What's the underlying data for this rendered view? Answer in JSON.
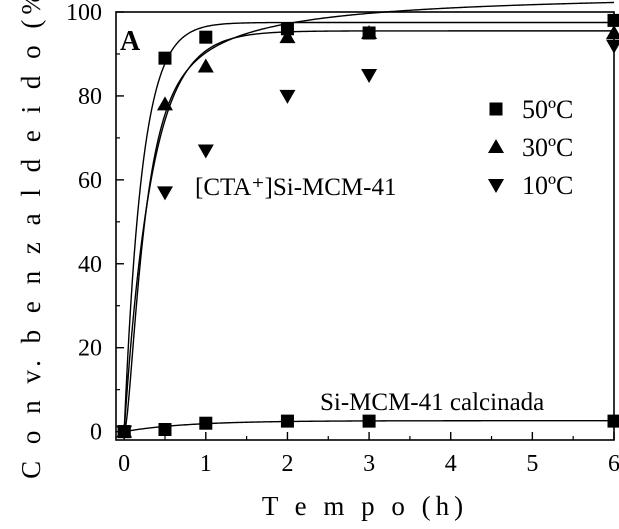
{
  "chart_data": {
    "type": "scatter",
    "panel_label": "A",
    "xlabel": "T e m p o  (h)",
    "ylabel": "C o n v.  b e n z a l d e i d o  (%)",
    "xlim": [
      -0.1,
      6
    ],
    "ylim": [
      -2,
      100
    ],
    "xticks": [
      0,
      1,
      2,
      3,
      4,
      5,
      6
    ],
    "yticks": [
      0,
      20,
      40,
      60,
      80,
      100
    ],
    "x_tick_labels": [
      "0",
      "1",
      "2",
      "3",
      "4",
      "5",
      "6"
    ],
    "y_tick_labels": [
      "0",
      "20",
      "40",
      "60",
      "80",
      "100"
    ],
    "grid": false,
    "legend_position": "right",
    "series": [
      {
        "name": "50ºC",
        "marker": "square",
        "x": [
          0,
          0.5,
          1,
          2,
          3,
          6
        ],
        "y": [
          0,
          89,
          94,
          96,
          95,
          98
        ]
      },
      {
        "name": "30ºC",
        "marker": "triangle-up",
        "x": [
          0,
          0.5,
          1,
          2,
          3,
          6
        ],
        "y": [
          0,
          78,
          87,
          94,
          95,
          95
        ]
      },
      {
        "name": "10ºC",
        "marker": "triangle-down",
        "x": [
          0,
          0.5,
          1,
          2,
          3,
          6
        ],
        "y": [
          0,
          57,
          67,
          80,
          85,
          92
        ]
      },
      {
        "marker": "square",
        "x": [
          0,
          0.5,
          1,
          2,
          3,
          6
        ],
        "y": [
          0,
          0.5,
          2,
          2.5,
          2.5,
          2.5
        ]
      }
    ],
    "annotations": [
      "[CTA⁺]Si-MCM-41",
      "Si-MCM-41 calcinada"
    ]
  }
}
